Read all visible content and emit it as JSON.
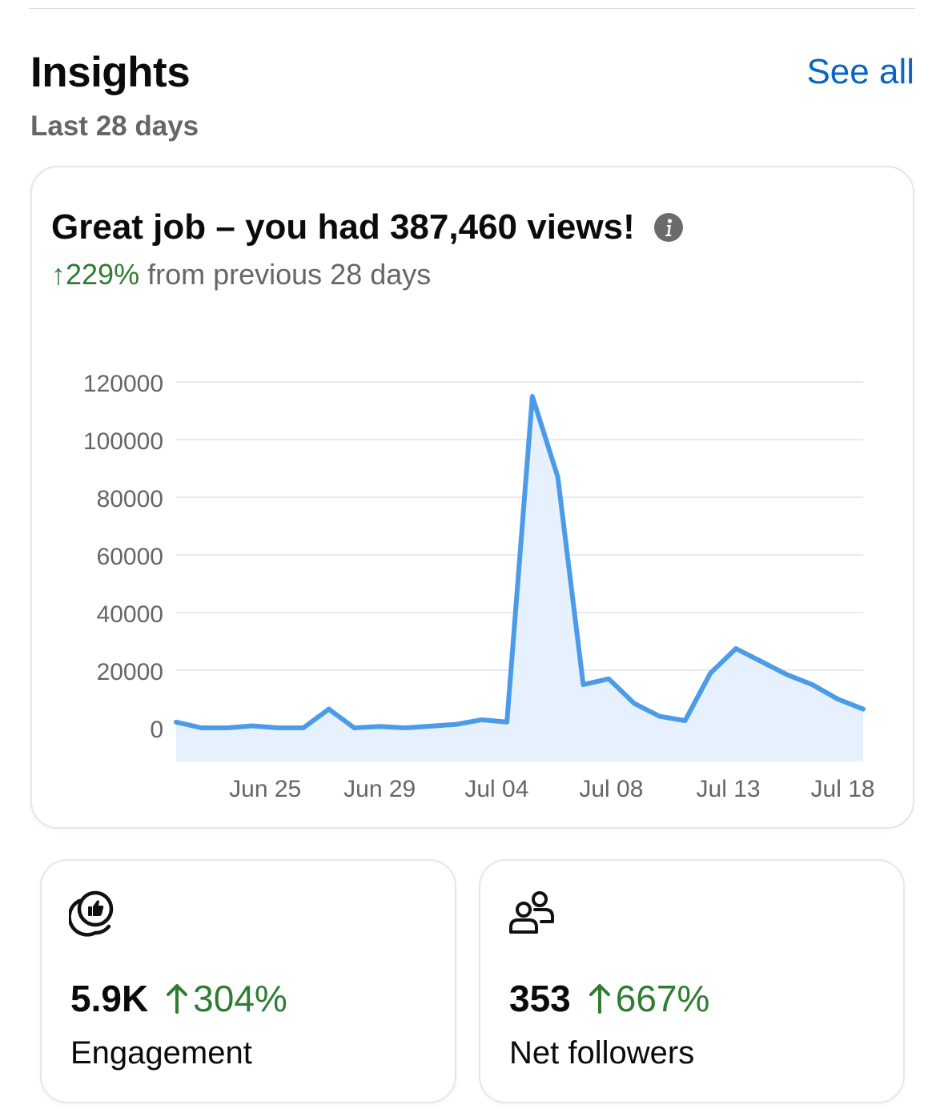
{
  "header": {
    "title": "Insights",
    "see_all_label": "See all",
    "period_label": "Last 28 days"
  },
  "summary": {
    "headline": "Great job – you had 387,460 views!",
    "change_arrow": "↑",
    "change_value": "229%",
    "change_suffix": "from previous 28 days",
    "info_icon": "info-icon"
  },
  "colors": {
    "accent_link": "#0a66c2",
    "positive": "#2e7d32",
    "line": "#4c9be8",
    "area": "#e6f1fd"
  },
  "chart_data": {
    "type": "area",
    "title": "",
    "xlabel": "",
    "ylabel": "",
    "ylim": [
      0,
      120000
    ],
    "yticks": [
      0,
      20000,
      40000,
      60000,
      80000,
      100000,
      120000
    ],
    "grid": true,
    "x_tick_labels": [
      "Jun 25",
      "Jun 29",
      "Jul 04",
      "Jul 08",
      "Jul 13",
      "Jul 18"
    ],
    "x_tick_day_index": [
      3.5,
      8,
      12.6,
      17.1,
      21.7,
      26.2
    ],
    "series": [
      {
        "values": [
          2000,
          0,
          0,
          700,
          0,
          0,
          6500,
          0,
          500,
          0,
          600,
          1200,
          2800,
          2000,
          115000,
          87000,
          15000,
          17000,
          8500,
          4000,
          2500,
          19000,
          27500,
          23000,
          18500,
          15000,
          10000,
          6500
        ]
      }
    ]
  },
  "stats": [
    {
      "value": "5.9K",
      "change": "304%",
      "label": "Engagement",
      "icon": "engagement-like-icon"
    },
    {
      "value": "353",
      "change": "667%",
      "label": "Net followers",
      "icon": "followers-icon"
    }
  ]
}
